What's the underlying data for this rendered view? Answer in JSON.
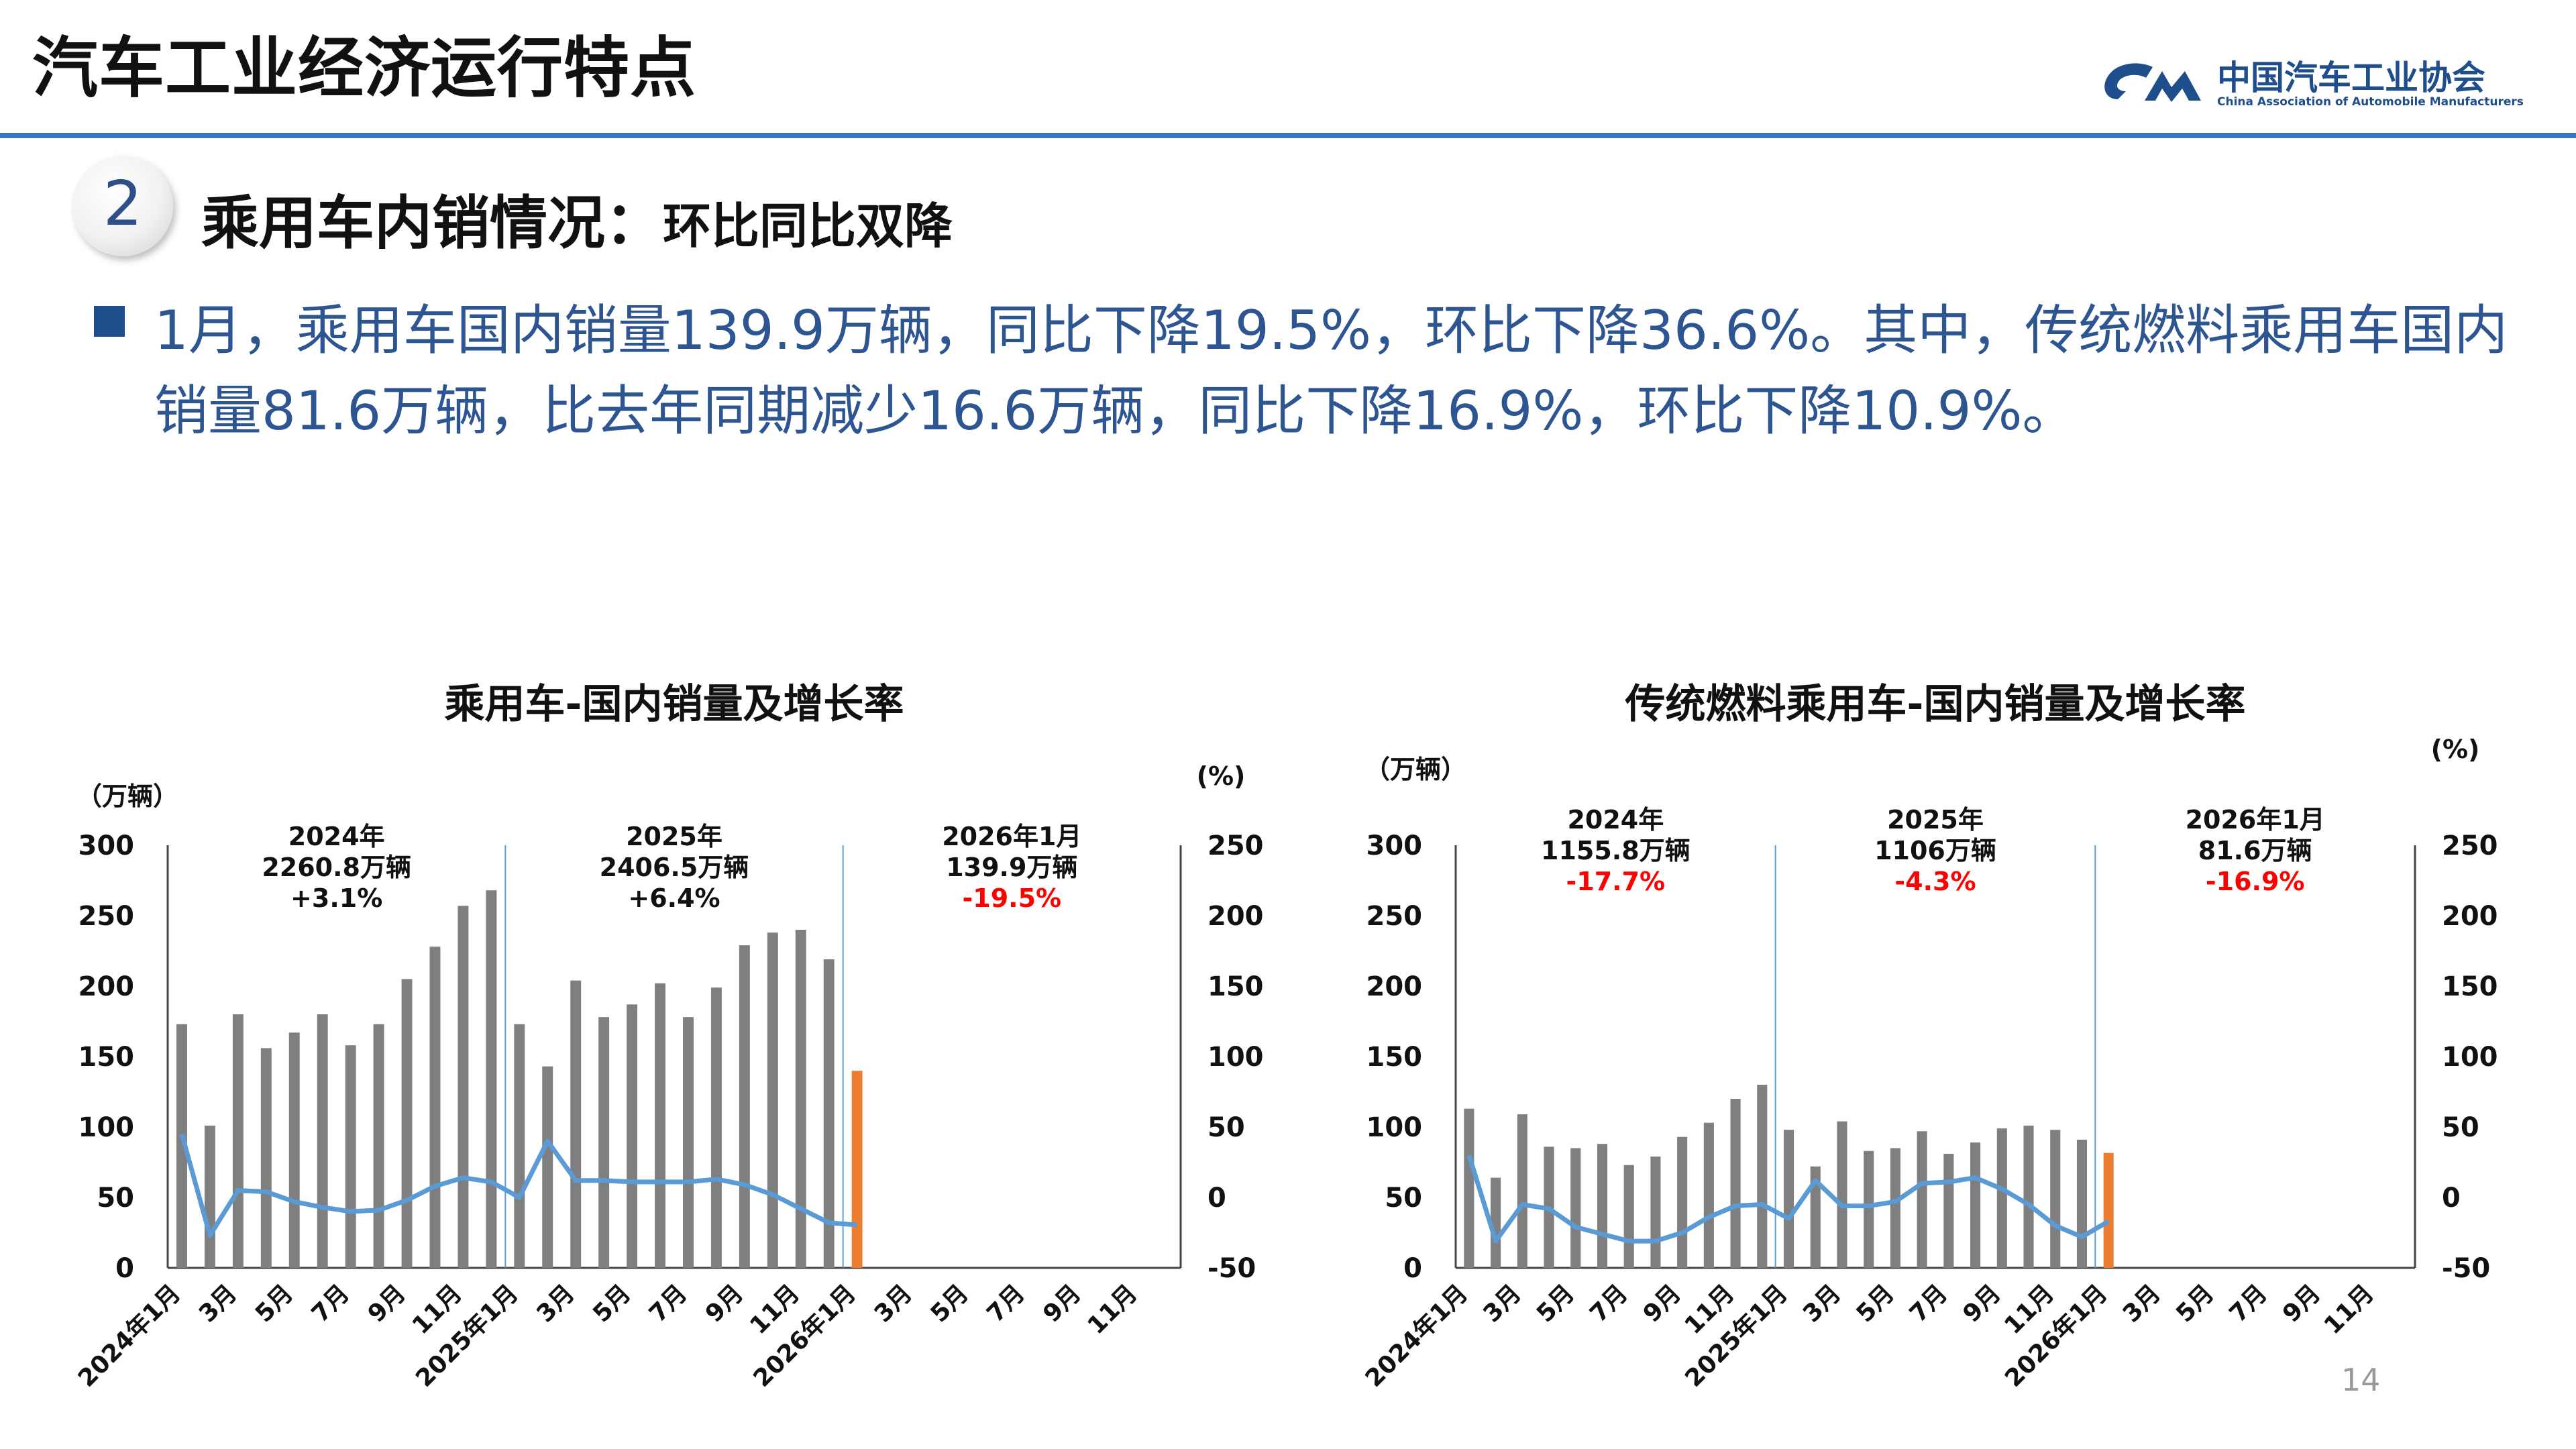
{
  "header": {
    "title": "汽车工业经济运行特点",
    "logo_cn": "中国汽车工业协会",
    "logo_en": "China Association of Automobile Manufacturers"
  },
  "section": {
    "number": "2",
    "title": "乘用车内销情况：",
    "subtitle": "环比同比双降"
  },
  "paragraph": {
    "line1": "1月，乘用车国内销量139.9万辆，同比下降19.5%，环比下降36.6%。其中，传统燃料乘用车国内",
    "line2": "销量81.6万辆，比去年同期减少16.6万辆，同比下降16.9%，环比下降10.9%。"
  },
  "page_number": "14",
  "colors": {
    "accent_blue": "#3b75c0",
    "bar_gray": "#7f7f7f",
    "bar_orange": "#ed7d31",
    "line_blue": "#5b9bd5",
    "red": "#ff0000"
  },
  "chart_data": [
    {
      "type": "bar",
      "title": "乘用车-国内销量及增长率",
      "ylabel_left": "（万辆）",
      "ylabel_right": "(%)",
      "ylim_left": [
        0,
        300
      ],
      "ylim_right": [
        -50,
        250
      ],
      "yticks_left": [
        "0",
        "50",
        "100",
        "150",
        "200",
        "250",
        "300"
      ],
      "yticks_right": [
        "-50",
        "0",
        "50",
        "100",
        "150",
        "200",
        "250"
      ],
      "x_tick_labels": [
        "2024年1月",
        "3月",
        "5月",
        "7月",
        "9月",
        "11月",
        "2025年1月",
        "3月",
        "5月",
        "7月",
        "9月",
        "11月",
        "2026年1月",
        "3月",
        "5月",
        "7月",
        "9月",
        "11月"
      ],
      "categories_count": 36,
      "series": [
        {
          "name": "国内销量",
          "type": "bar",
          "values": [
            173,
            101,
            180,
            156,
            167,
            180,
            158,
            173,
            205,
            228,
            257,
            268,
            173,
            143,
            204,
            178,
            187,
            202,
            178,
            199,
            229,
            238,
            240,
            219,
            139.9
          ]
        },
        {
          "name": "增长率",
          "type": "line",
          "axis": "right",
          "values": [
            45,
            -27,
            5,
            4,
            -3,
            -7,
            -10,
            -9,
            -2,
            8,
            14,
            11,
            0,
            40,
            12,
            12,
            11,
            11,
            11,
            13,
            9,
            2,
            -8,
            -18,
            -19.5
          ]
        }
      ],
      "annotations": [
        {
          "lines": [
            "2024年",
            "2260.8万辆",
            "+3.1%"
          ],
          "red_last": false
        },
        {
          "lines": [
            "2025年",
            "2406.5万辆",
            "+6.4%"
          ],
          "red_last": false
        },
        {
          "lines": [
            "2026年1月",
            "139.9万辆",
            "-19.5%"
          ],
          "red_last": true
        }
      ]
    },
    {
      "type": "bar",
      "title": "传统燃料乘用车-国内销量及增长率",
      "ylabel_left": "（万辆）",
      "ylabel_right": "(%)",
      "ylim_left": [
        0,
        300
      ],
      "ylim_right": [
        -50,
        250
      ],
      "yticks_left": [
        "0",
        "50",
        "100",
        "150",
        "200",
        "250",
        "300"
      ],
      "yticks_right": [
        "-50",
        "0",
        "50",
        "100",
        "150",
        "200",
        "250"
      ],
      "x_tick_labels": [
        "2024年1月",
        "3月",
        "5月",
        "7月",
        "9月",
        "11月",
        "2025年1月",
        "3月",
        "5月",
        "7月",
        "9月",
        "11月",
        "2026年1月",
        "3月",
        "5月",
        "7月",
        "9月",
        "11月"
      ],
      "categories_count": 36,
      "series": [
        {
          "name": "国内销量",
          "type": "bar",
          "values": [
            113,
            64,
            109,
            86,
            85,
            88,
            73,
            79,
            93,
            103,
            120,
            130,
            98,
            72,
            104,
            83,
            85,
            97,
            81,
            89,
            99,
            101,
            98,
            91,
            81.6
          ]
        },
        {
          "name": "增长率",
          "type": "line",
          "axis": "right",
          "values": [
            30,
            -31,
            -5,
            -8,
            -21,
            -26,
            -31,
            -31,
            -25,
            -14,
            -6,
            -5,
            -15,
            12,
            -6,
            -6,
            -3,
            10,
            11,
            14,
            6,
            -5,
            -20,
            -28,
            -16.9
          ]
        }
      ],
      "annotations": [
        {
          "lines": [
            "2024年",
            "1155.8万辆",
            "-17.7%"
          ],
          "red_last": true
        },
        {
          "lines": [
            "2025年",
            "1106万辆",
            "-4.3%"
          ],
          "red_last": true
        },
        {
          "lines": [
            "2026年1月",
            "81.6万辆",
            "-16.9%"
          ],
          "red_last": true
        }
      ]
    }
  ]
}
